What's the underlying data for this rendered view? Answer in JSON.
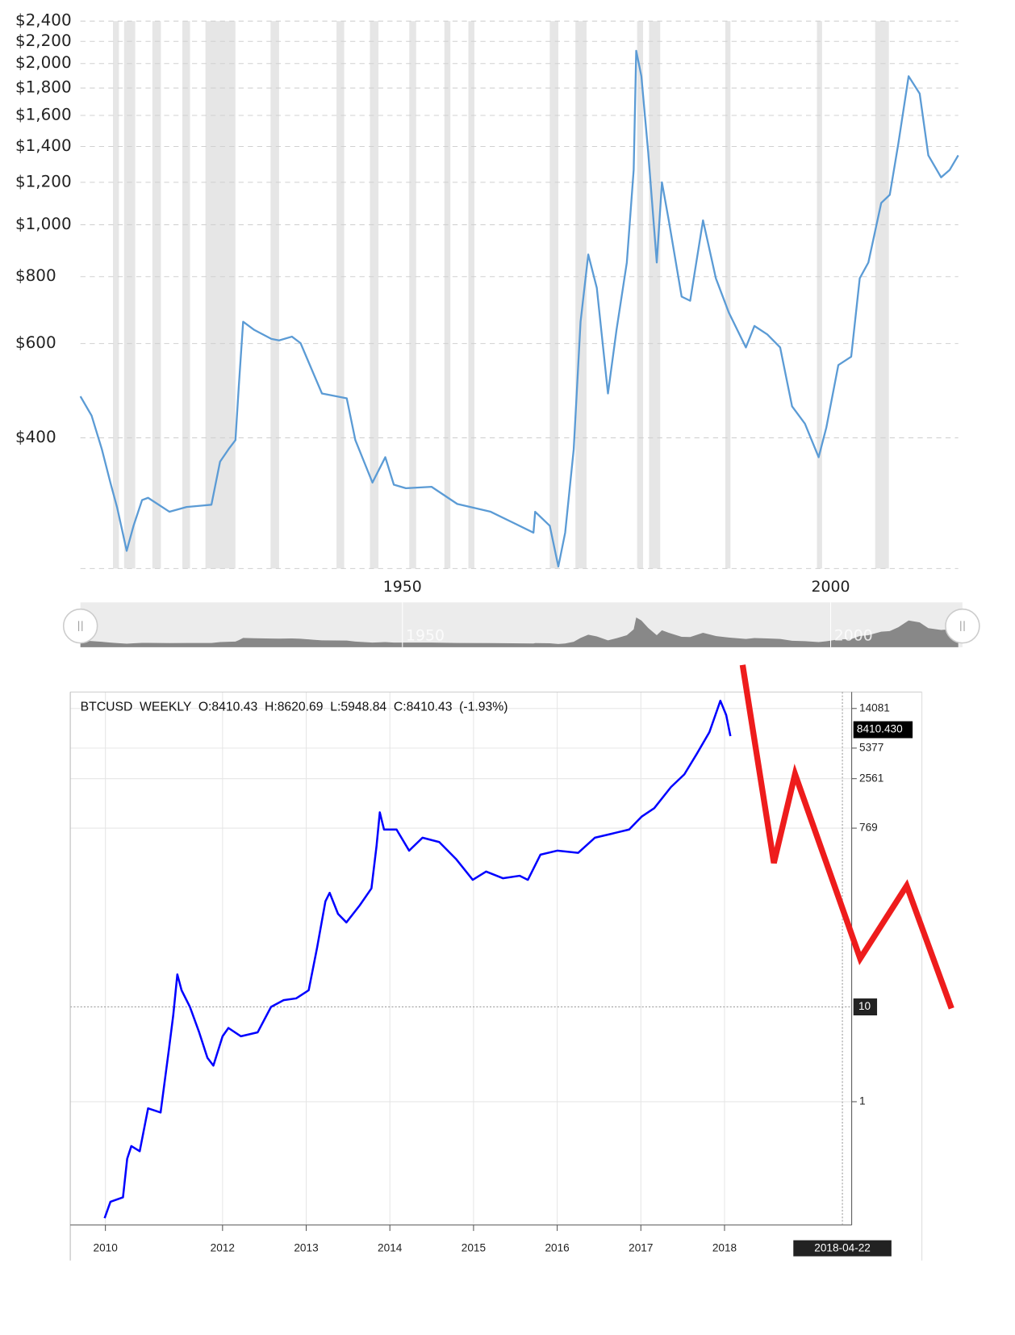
{
  "chart_data": [
    {
      "type": "line",
      "ylog": true,
      "grid": true,
      "color": "#5b9bd5",
      "xlim": [
        1912.4,
        2014.9
      ],
      "xticks": [
        1950,
        2000
      ],
      "ylim": [
        228,
        2400
      ],
      "yticks": [
        {
          "value": 2400,
          "label": "$2,400"
        },
        {
          "value": 2200,
          "label": "$2,200"
        },
        {
          "value": 2000,
          "label": "$2,000"
        },
        {
          "value": 1800,
          "label": "$1,800"
        },
        {
          "value": 1600,
          "label": "$1,600"
        },
        {
          "value": 1400,
          "label": "$1,400"
        },
        {
          "value": 1200,
          "label": "$1,200"
        },
        {
          "value": 1000,
          "label": "$1,000"
        },
        {
          "value": 800,
          "label": "$800"
        },
        {
          "value": 600,
          "label": "$600"
        },
        {
          "value": 400,
          "label": "$400"
        }
      ],
      "recessions": [
        [
          1916.2,
          1916.9
        ],
        [
          1917.5,
          1918.8
        ],
        [
          1920.8,
          1921.8
        ],
        [
          1924.3,
          1925.2
        ],
        [
          1927.0,
          1930.5
        ],
        [
          1934.6,
          1935.6
        ],
        [
          1942.3,
          1943.2
        ],
        [
          1946.2,
          1947.2
        ],
        [
          1950.8,
          1951.6
        ],
        [
          1954.9,
          1955.6
        ],
        [
          1957.7,
          1958.4
        ],
        [
          1967.2,
          1968.2
        ],
        [
          1970.2,
          1971.5
        ],
        [
          1977.4,
          1978.1
        ],
        [
          1978.8,
          1980.1
        ],
        [
          1987.7,
          1988.3
        ],
        [
          1998.4,
          1999.0
        ],
        [
          2005.2,
          2006.8
        ]
      ],
      "x": [
        1912.4,
        1913.7,
        1914.9,
        1915.9,
        1916.7,
        1917.8,
        1918.6,
        1919.6,
        1920.3,
        1922.8,
        1924.8,
        1927.7,
        1928.7,
        1929.7,
        1930.5,
        1930.9,
        1931.4,
        1932.7,
        1934.7,
        1935.6,
        1937.1,
        1938.1,
        1939.6,
        1940.6,
        1943.5,
        1944.5,
        1946.5,
        1948.0,
        1949.0,
        1950.4,
        1953.4,
        1956.4,
        1960.3,
        1965.3,
        1965.5,
        1967.2,
        1968.2,
        1969.0,
        1970.0,
        1970.8,
        1971.7,
        1972.7,
        1974.0,
        1975.0,
        1976.2,
        1977.0,
        1977.3,
        1977.9,
        1978.7,
        1979.7,
        1980.3,
        1981.1,
        1982.6,
        1983.6,
        1985.1,
        1986.6,
        1988.1,
        1990.1,
        1991.1,
        1992.6,
        1994.1,
        1995.5,
        1997.0,
        1998.6,
        1999.5,
        2000.9,
        2002.4,
        2003.4,
        2004.4,
        2005.9,
        2006.9,
        2007.9,
        2009.1,
        2010.4,
        2011.4,
        2012.9,
        2013.9,
        2014.9
      ],
      "values": [
        478,
        440,
        381,
        330,
        296,
        246,
        274,
        306,
        309,
        291,
        297,
        300,
        361,
        381,
        396,
        500,
        659,
        636,
        612,
        608,
        618,
        601,
        528,
        484,
        474,
        396,
        330,
        368,
        327,
        322,
        324,
        301,
        291,
        266,
        291,
        274,
        230,
        266,
        381,
        659,
        880,
        762,
        484,
        636,
        850,
        1266,
        2113,
        1894,
        1364,
        850,
        1200,
        1019,
        734,
        721,
        1019,
        794,
        686,
        590,
        647,
        624,
        590,
        458,
        425,
        368,
        418,
        547,
        567,
        794,
        850,
        1098,
        1137,
        1416,
        1894,
        1757,
        1348,
        1226,
        1266,
        1348
      ]
    },
    {
      "type": "line",
      "ylog": true,
      "grid": true,
      "color": "#0000ff",
      "title": "BTCUSD  WEEKLY  O:8410.43  H:8620.69  L:5948.84  C:8410.43  (-1.93%)",
      "xlim": [
        2010.18,
        2019.52
      ],
      "xticks": [
        {
          "value": 2010.6,
          "label": "2010"
        },
        2012,
        2013,
        2014,
        2015,
        2016,
        2017,
        2018
      ],
      "ylim": [
        0.05,
        21000
      ],
      "yticks": [
        14081,
        5377,
        2561,
        769,
        1
      ],
      "price_tag": {
        "value": 8410.43,
        "label": "8410.430"
      },
      "crosshair": {
        "y": 10,
        "date": "2018-04-22"
      },
      "x": [
        2010.59,
        2010.66,
        2010.81,
        2010.86,
        2010.91,
        2011.01,
        2011.11,
        2011.26,
        2011.36,
        2011.41,
        2011.46,
        2011.51,
        2011.61,
        2011.72,
        2011.82,
        2011.89,
        2012.0,
        2012.07,
        2012.22,
        2012.42,
        2012.58,
        2012.73,
        2012.88,
        2013.03,
        2013.13,
        2013.23,
        2013.28,
        2013.38,
        2013.48,
        2013.64,
        2013.78,
        2013.84,
        2013.88,
        2013.93,
        2014.08,
        2014.23,
        2014.39,
        2014.59,
        2014.79,
        2014.99,
        2015.15,
        2015.35,
        2015.55,
        2015.65,
        2015.8,
        2016.0,
        2016.25,
        2016.45,
        2016.65,
        2016.86,
        2017.01,
        2017.16,
        2017.36,
        2017.52,
        2017.67,
        2017.82,
        2017.95,
        2018.02,
        2018.07
      ],
      "values": [
        0.059,
        0.088,
        0.098,
        0.25,
        0.34,
        0.3,
        0.85,
        0.77,
        3.6,
        8.1,
        22,
        15,
        10,
        5.4,
        2.9,
        2.4,
        4.9,
        6.0,
        4.9,
        5.4,
        10,
        11.8,
        12.3,
        15,
        42,
        130,
        160,
        96,
        78,
        118,
        178,
        494,
        1129,
        745,
        745,
        445,
        610,
        549,
        364,
        219,
        268,
        228,
        242,
        219,
        404,
        445,
        422,
        610,
        672,
        745,
        1020,
        1250,
        2090,
        2840,
        4700,
        7950,
        17000,
        12000,
        7200
      ]
    }
  ]
}
